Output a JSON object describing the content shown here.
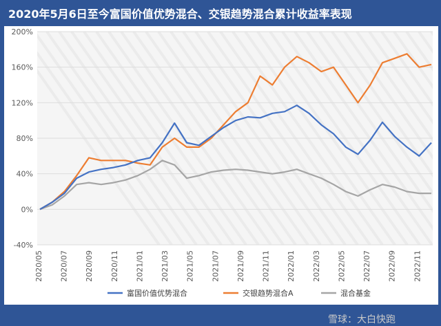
{
  "title": "2020年5月6日至今富国价值优势混合、交银趋势混合累计收益率表现",
  "watermark": "雪球：大白快跑",
  "chart_data": {
    "type": "line",
    "ylim": [
      -40,
      200
    ],
    "yticks": [
      "200%",
      "160%",
      "120%",
      "80%",
      "40%",
      "0%",
      "-40%"
    ],
    "ytick_values": [
      200,
      160,
      120,
      80,
      40,
      0,
      -40
    ],
    "xticks": [
      "2020/05",
      "2020/07",
      "2020/09",
      "2020/11",
      "2021/01",
      "2021/03",
      "2021/05",
      "2021/07",
      "2021/09",
      "2021/11",
      "2022/01",
      "2022/03",
      "2022/05",
      "2022/07",
      "2022/09",
      "2022/11"
    ],
    "x_count": 33,
    "legend_position": "bottom",
    "grid": true,
    "series": [
      {
        "name": "富国价值优势混合",
        "color": "#4472c4",
        "values": [
          0,
          8,
          18,
          35,
          42,
          45,
          47,
          50,
          55,
          58,
          75,
          97,
          75,
          72,
          82,
          92,
          100,
          104,
          103,
          108,
          110,
          117,
          108,
          95,
          85,
          70,
          62,
          78,
          98,
          82,
          70,
          60,
          75
        ]
      },
      {
        "name": "交银趋势混合A",
        "color": "#ed7d31",
        "values": [
          0,
          8,
          20,
          38,
          58,
          55,
          55,
          55,
          52,
          50,
          70,
          80,
          70,
          70,
          80,
          95,
          110,
          120,
          150,
          140,
          160,
          172,
          165,
          155,
          160,
          140,
          120,
          140,
          165,
          170,
          175,
          160,
          163
        ]
      },
      {
        "name": "混合基金",
        "color": "#a5a5a5",
        "values": [
          0,
          5,
          15,
          28,
          30,
          28,
          30,
          33,
          38,
          45,
          55,
          50,
          35,
          38,
          42,
          44,
          45,
          44,
          42,
          40,
          42,
          45,
          40,
          35,
          28,
          20,
          15,
          22,
          28,
          25,
          20,
          18,
          18
        ]
      }
    ]
  }
}
